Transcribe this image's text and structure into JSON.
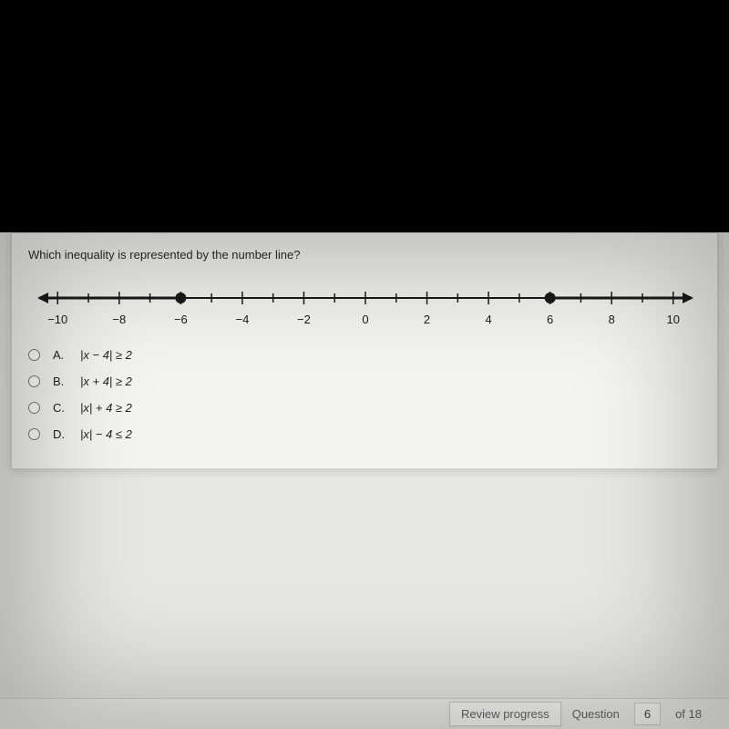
{
  "question": {
    "prompt": "Which inequality is represented by the number line?",
    "numberline": {
      "xmin": -10.6,
      "xmax": 10.6,
      "tick_step": 1,
      "label_step": 2,
      "label_min": -10,
      "label_max": 10,
      "solid_points": [
        -6,
        6
      ],
      "rays": [
        {
          "start": -6,
          "direction": "left"
        },
        {
          "start": 6,
          "direction": "right"
        }
      ],
      "axis_color": "#1a1a1a",
      "tick_height_major": 14,
      "tick_height_minor": 10,
      "point_radius": 6,
      "line_width": 2,
      "label_fontsize": 13,
      "label_color": "#1a1a1a"
    },
    "options": [
      {
        "letter": "A.",
        "text": "|x − 4| ≥ 2"
      },
      {
        "letter": "B.",
        "text": "|x + 4| ≥ 2"
      },
      {
        "letter": "C.",
        "text": "|x| + 4 ≥ 2"
      },
      {
        "letter": "D.",
        "text": "|x| − 4 ≤ 2"
      }
    ]
  },
  "footer": {
    "review_label": "Review progress",
    "question_label": "Question",
    "current": "6",
    "total_label": "of 18"
  }
}
